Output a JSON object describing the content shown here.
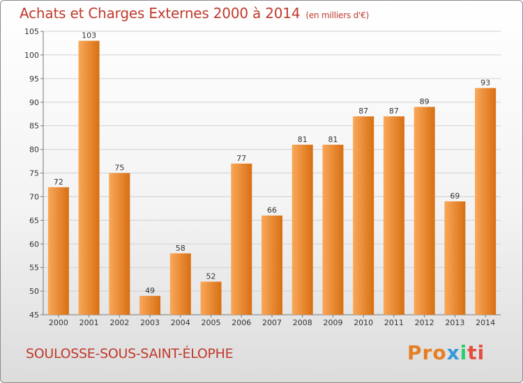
{
  "header": {
    "title": "Achats et Charges Externes 2000 à 2014",
    "subtitle": "(en milliers d'€)"
  },
  "footer": {
    "city": "SOULOSSE-SOUS-SAINT-ÉLOPHE",
    "brand_parts": [
      "Pro",
      "x",
      "i",
      "ti"
    ]
  },
  "colors": {
    "title": "#c0392b",
    "bar_light": "#f9a85a",
    "bar_dark": "#d86f12",
    "grid": "#d0d0d0"
  },
  "chart_data": {
    "type": "bar",
    "categories": [
      "2000",
      "2001",
      "2002",
      "2003",
      "2004",
      "2005",
      "2006",
      "2007",
      "2008",
      "2009",
      "2010",
      "2011",
      "2012",
      "2013",
      "2014"
    ],
    "values": [
      72,
      103,
      75,
      49,
      58,
      52,
      77,
      66,
      81,
      81,
      87,
      87,
      89,
      69,
      93
    ],
    "ylim": [
      45,
      105
    ],
    "yticks": [
      45,
      50,
      55,
      60,
      65,
      70,
      75,
      80,
      85,
      90,
      95,
      100,
      105
    ],
    "grid": true,
    "data_labels": true
  }
}
